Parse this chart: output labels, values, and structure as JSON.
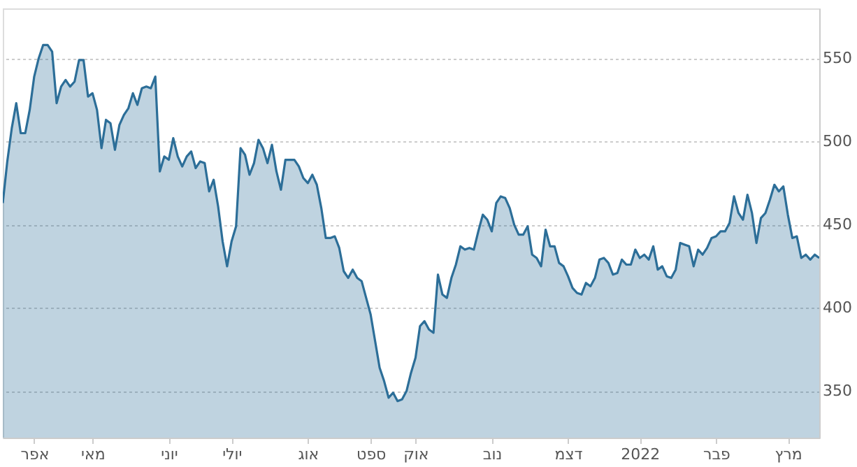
{
  "chart_data": {
    "type": "area",
    "categories": [
      null,
      null,
      null,
      null,
      null,
      null,
      null,
      "אפר",
      null,
      null,
      null,
      null,
      null,
      null,
      null,
      null,
      null,
      null,
      null,
      null,
      "מאי",
      null,
      null,
      null,
      null,
      null,
      null,
      null,
      null,
      null,
      null,
      null,
      null,
      null,
      null,
      null,
      null,
      "יוני",
      null,
      null,
      null,
      null,
      null,
      null,
      null,
      null,
      null,
      null,
      null,
      null,
      null,
      "יולי",
      null,
      null,
      null,
      null,
      null,
      null,
      null,
      null,
      null,
      null,
      null,
      null,
      null,
      null,
      null,
      null,
      "אוג",
      null,
      null,
      null,
      null,
      null,
      null,
      null,
      null,
      null,
      null,
      null,
      null,
      null,
      "ספט",
      null,
      null,
      null,
      null,
      null,
      null,
      null,
      null,
      null,
      "אוק",
      null,
      null,
      null,
      null,
      null,
      null,
      null,
      null,
      null,
      null,
      null,
      null,
      null,
      null,
      null,
      null,
      "נוב",
      null,
      null,
      null,
      null,
      null,
      null,
      null,
      null,
      null,
      null,
      null,
      null,
      null,
      null,
      null,
      null,
      "דצמ",
      null,
      null,
      null,
      null,
      null,
      null,
      null,
      null,
      null,
      null,
      null,
      null,
      null,
      null,
      null,
      "2022",
      null,
      null,
      null,
      null,
      null,
      null,
      null,
      null,
      null,
      null,
      null,
      null,
      null,
      null,
      null,
      null,
      "פבר",
      null,
      null,
      null,
      null,
      null,
      null,
      null,
      null,
      null,
      null,
      null,
      null,
      null,
      null,
      null,
      "מרץ",
      null,
      null,
      null,
      null,
      null,
      null,
      null
    ],
    "series": [
      {
        "color": "#2c6e98",
        "values": [
          463,
          488,
          508,
          523,
          505,
          505,
          519,
          539,
          550,
          558,
          558,
          554,
          523,
          533,
          537,
          533,
          536,
          549,
          549,
          527,
          529,
          519,
          496,
          513,
          511,
          495,
          510,
          516,
          520,
          529,
          522,
          532,
          533,
          532,
          539,
          482,
          491,
          489,
          502,
          491,
          485,
          491,
          494,
          484,
          488,
          487,
          470,
          477,
          461,
          440,
          425,
          440,
          449,
          496,
          492,
          480,
          487,
          501,
          496,
          487,
          498,
          482,
          471,
          489,
          489,
          489,
          485,
          478,
          475,
          480,
          474,
          460,
          442,
          442,
          443,
          436,
          422,
          418,
          423,
          418,
          416,
          406,
          396,
          380,
          364,
          356,
          346,
          349,
          344,
          345,
          350,
          361,
          370,
          389,
          392,
          387,
          385,
          420,
          408,
          406,
          418,
          426,
          437,
          435,
          436,
          435,
          446,
          456,
          453,
          446,
          463,
          467,
          466,
          460,
          450,
          444,
          444,
          449,
          432,
          430,
          425,
          447,
          437,
          437,
          427,
          425,
          419,
          412,
          409,
          408,
          415,
          413,
          418,
          429,
          430,
          427,
          420,
          421,
          429,
          426,
          426,
          435,
          430,
          432,
          429,
          437,
          423,
          425,
          419,
          418,
          423,
          439,
          438,
          437,
          425,
          435,
          432,
          436,
          442,
          443,
          446,
          446,
          451,
          467,
          457,
          453,
          468,
          457,
          439,
          454,
          457,
          465,
          474,
          470,
          473,
          456,
          442,
          443,
          430,
          432,
          429,
          432,
          430
        ]
      }
    ],
    "ylim": [
      322,
      580
    ],
    "yticks": [
      350,
      400,
      450,
      500,
      550
    ],
    "grid": "y"
  }
}
